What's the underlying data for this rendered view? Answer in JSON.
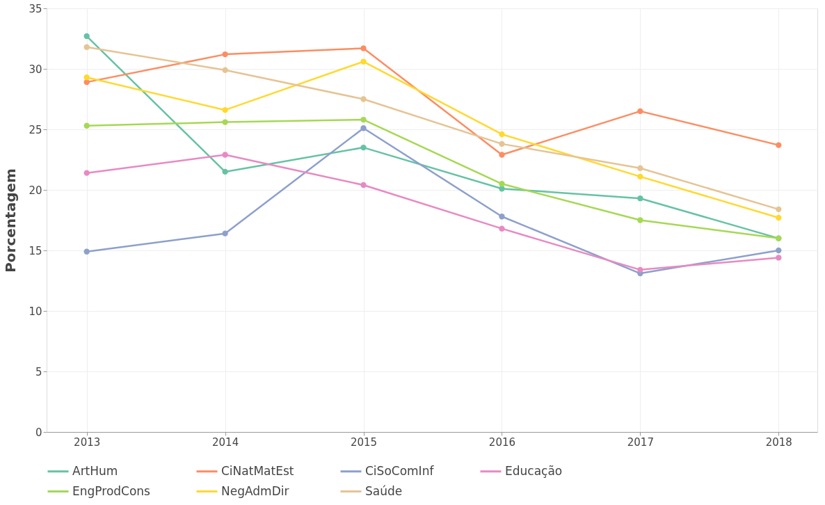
{
  "chart_data": {
    "type": "line",
    "ylabel": "Porcentagem",
    "x": [
      2013,
      2014,
      2015,
      2016,
      2017,
      2018
    ],
    "xlim": [
      2012.71,
      2018.28
    ],
    "xticks": [
      2013,
      2014,
      2015,
      2016,
      2017,
      2018
    ],
    "ylim": [
      0,
      35
    ],
    "yticks": [
      0,
      5,
      10,
      15,
      20,
      25,
      30,
      35
    ],
    "grid": true,
    "legend": "bottom",
    "marker": "circle",
    "line_style": "solid",
    "series": [
      {
        "name": "ArtHum",
        "color": "#66c2a5",
        "values": [
          32.7,
          21.5,
          23.5,
          20.1,
          19.3,
          16.0
        ]
      },
      {
        "name": "CiNatMatEst",
        "color": "#fc8d62",
        "values": [
          28.9,
          31.2,
          31.7,
          22.9,
          26.5,
          23.7
        ]
      },
      {
        "name": "CiSoComInf",
        "color": "#8da0cb",
        "values": [
          14.9,
          16.4,
          25.1,
          17.8,
          13.1,
          15.0
        ]
      },
      {
        "name": "Educação",
        "color": "#e78ac3",
        "values": [
          21.4,
          22.9,
          20.4,
          16.8,
          13.4,
          14.4
        ]
      },
      {
        "name": "EngProdCons",
        "color": "#a6d854",
        "values": [
          25.3,
          25.6,
          25.8,
          20.5,
          17.5,
          16.0
        ]
      },
      {
        "name": "NegAdmDir",
        "color": "#ffd92f",
        "values": [
          29.3,
          26.6,
          30.6,
          24.6,
          21.1,
          17.7
        ]
      },
      {
        "name": "Saúde",
        "color": "#e5c494",
        "values": [
          31.8,
          29.9,
          27.5,
          23.8,
          21.8,
          18.4
        ]
      }
    ]
  }
}
